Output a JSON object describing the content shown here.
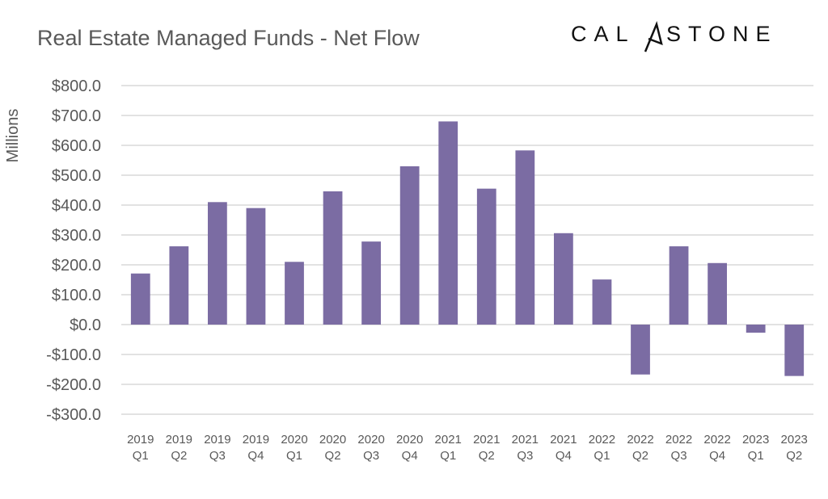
{
  "logo_text": "CALASTONE",
  "colors": {
    "bar": "#7B6CA3",
    "grid": "#D9D9D9",
    "text": "#595959"
  },
  "chart_data": {
    "type": "bar",
    "title": "Real Estate Managed Funds - Net Flow",
    "xlabel": "",
    "ylabel": "Millions",
    "ylim": [
      -300,
      800
    ],
    "yticks": [
      800,
      700,
      600,
      500,
      400,
      300,
      200,
      100,
      0,
      -100,
      -200,
      -300
    ],
    "ytick_labels": [
      "$800.0",
      "$700.0",
      "$600.0",
      "$500.0",
      "$400.0",
      "$300.0",
      "$200.0",
      "$100.0",
      "$0.0",
      "-$100.0",
      "-$200.0",
      "-$300.0"
    ],
    "grid": true,
    "legend": "none",
    "categories": [
      [
        "2019",
        "Q1"
      ],
      [
        "2019",
        "Q2"
      ],
      [
        "2019",
        "Q3"
      ],
      [
        "2019",
        "Q4"
      ],
      [
        "2020",
        "Q1"
      ],
      [
        "2020",
        "Q2"
      ],
      [
        "2020",
        "Q3"
      ],
      [
        "2020",
        "Q4"
      ],
      [
        "2021",
        "Q1"
      ],
      [
        "2021",
        "Q2"
      ],
      [
        "2021",
        "Q3"
      ],
      [
        "2021",
        "Q4"
      ],
      [
        "2022",
        "Q1"
      ],
      [
        "2022",
        "Q2"
      ],
      [
        "2022",
        "Q3"
      ],
      [
        "2022",
        "Q4"
      ],
      [
        "2023",
        "Q1"
      ],
      [
        "2023",
        "Q2"
      ]
    ],
    "values": [
      171,
      262,
      410,
      390,
      210,
      446,
      278,
      530,
      680,
      455,
      583,
      306,
      151,
      -167,
      262,
      206,
      -27,
      -172
    ]
  }
}
